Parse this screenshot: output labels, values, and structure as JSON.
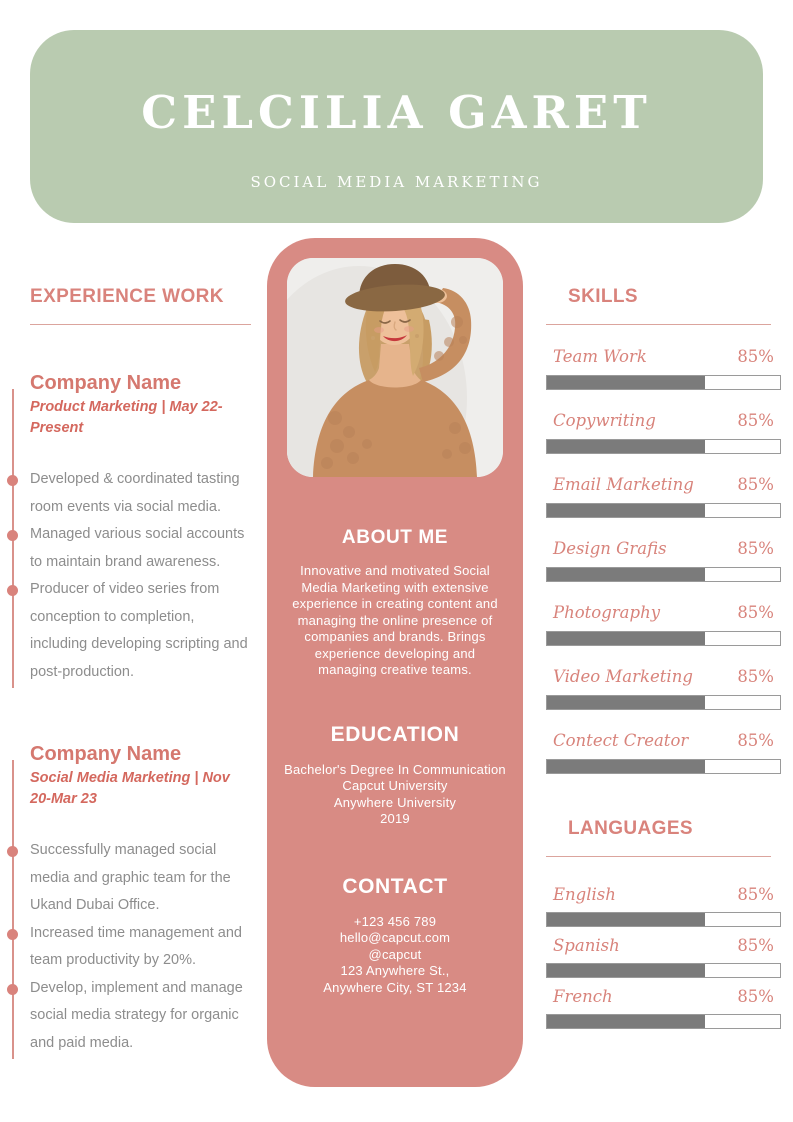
{
  "header": {
    "name": "CELCILIA GARET",
    "subtitle": "SOCIAL MEDIA MARKETING"
  },
  "experience": {
    "title": "EXPERIENCE WORK",
    "jobs": [
      {
        "company": "Company Name",
        "meta": "Product Marketing | May 22-Present",
        "bullets": [
          "Developed & coordinated tasting room events via social media.",
          "Managed various social accounts to maintain brand awareness.",
          "Producer of video series from conception to completion, including developing scripting and post-production."
        ]
      },
      {
        "company": "Company Name",
        "meta": "Social Media Marketing | Nov 20-Mar 23",
        "bullets": [
          "Successfully managed social media and graphic team for the Ukand Dubai Office.",
          "Increased time management and team productivity by 20%.",
          "Develop, implement and manage social media strategy for organic and paid media."
        ]
      }
    ]
  },
  "profile": {
    "photo": "woman-portrait-photo",
    "about": {
      "title": "ABOUT ME",
      "text": "Innovative and motivated Social Media Marketing with extensive experience in creating content and managing the online presence of companies and brands. Brings experience developing and managing creative teams."
    },
    "education": {
      "title": "EDUCATION",
      "lines": [
        "Bachelor's Degree In Communication",
        "Capcut University",
        "Anywhere University",
        "2019"
      ]
    },
    "contact": {
      "title": "CONTACT",
      "lines": [
        "+123  456 789",
        "hello@capcut.com",
        "@capcut",
        "123 Anywhere St.,",
        "Anywhere City, ST 1234"
      ]
    }
  },
  "skills": {
    "title": "SKILLS",
    "items": [
      {
        "label": "Team Work",
        "percent": "85%"
      },
      {
        "label": "Copywriting",
        "percent": "85%"
      },
      {
        "label": "Email Marketing",
        "percent": "85%"
      },
      {
        "label": "Design Grafis",
        "percent": "85%"
      },
      {
        "label": "Photography",
        "percent": "85%"
      },
      {
        "label": "Video Marketing",
        "percent": "85%"
      },
      {
        "label": "Contect Creator",
        "percent": "85%"
      }
    ]
  },
  "languages": {
    "title": "LANGUAGES",
    "items": [
      {
        "label": "English",
        "percent": "85%"
      },
      {
        "label": "Spanish",
        "percent": "85%"
      },
      {
        "label": "French",
        "percent": "85%"
      }
    ]
  },
  "ui": {
    "bar_fill_percent": 68,
    "colors": {
      "banner_green": "#b9cbb0",
      "card_pink": "#d88b84",
      "accent_pink": "#d9837c",
      "meta_pink": "#d4685e",
      "bar_fill_gray": "#7b7b7b",
      "body_text_gray": "#8d8d8d"
    }
  }
}
